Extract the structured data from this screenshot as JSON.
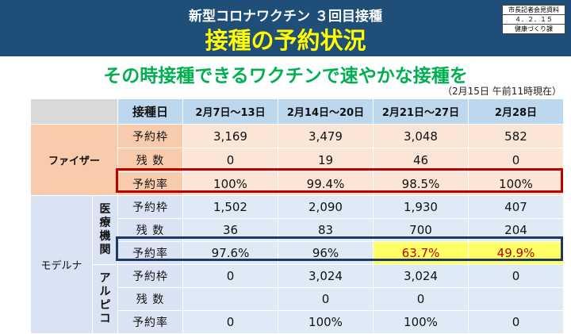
{
  "header": {
    "subtitle": "新型コロナワクチン ３回目接種",
    "title": "接種の予約状況",
    "stamp": [
      "市長記者会見資料",
      "４．２．１５",
      "健康づくり課"
    ]
  },
  "headline": "その時接種できるワクチンで速やかな接種を",
  "as_of": "（2月15日 午前11時現在）",
  "table": {
    "col_header_label": "接種日",
    "weeks": [
      "2月7日～13日",
      "2月14日～20日",
      "2月21日～27日",
      "2月28日"
    ],
    "pfizer": {
      "name": "ファイザー",
      "rows": [
        {
          "label": "予約枠",
          "values": [
            "3,169",
            "3,479",
            "3,048",
            "582"
          ]
        },
        {
          "label": "残 数",
          "values": [
            "0",
            "19",
            "46",
            "0"
          ]
        },
        {
          "label": "予約率",
          "values": [
            "100%",
            "99.4%",
            "98.5%",
            "100%"
          ]
        }
      ]
    },
    "moderna": {
      "name": "モデルナ",
      "medical": {
        "name": "医療機関",
        "rows": [
          {
            "label": "予約枠",
            "values": [
              "1,502",
              "2,090",
              "1,930",
              "407"
            ]
          },
          {
            "label": "残 数",
            "values": [
              "36",
              "83",
              "700",
              "204"
            ]
          },
          {
            "label": "予約率",
            "values": [
              "97.6%",
              "96%",
              "63.7%",
              "49.9%"
            ]
          }
        ]
      },
      "alpico": {
        "name": "アルピコ",
        "rows": [
          {
            "label": "予約枠",
            "values": [
              "0",
              "3,024",
              "3,024",
              "0"
            ]
          },
          {
            "label": "残 数",
            "values": [
              "",
              "0",
              "0",
              ""
            ]
          },
          {
            "label": "予約率",
            "values": [
              "0",
              "100%",
              "100%",
              "0"
            ]
          }
        ]
      }
    }
  },
  "colors": {
    "header_bg": "#1f4e79",
    "title_text": "#ffff00",
    "headline_text": "#00b050",
    "pfizer_bg": "#fbe5d6",
    "moderna_bg": "#deebf7",
    "highlight_bg": "#ffff66",
    "highlight_text": "#c00000",
    "pfizer_box": "#c00000",
    "moderna_box": "#1f3864"
  }
}
